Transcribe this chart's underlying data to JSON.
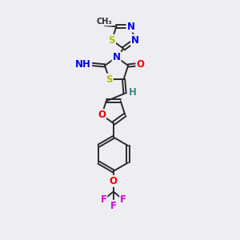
{
  "bg_color": "#eeeef2",
  "bond_color": "#2a2a2a",
  "atom_colors": {
    "N": "#0000ee",
    "S": "#bbbb00",
    "O": "#ee0000",
    "F": "#dd00dd",
    "C": "#2a2a2a",
    "H": "#408888"
  },
  "font_size_atom": 8.5,
  "line_width": 1.4
}
